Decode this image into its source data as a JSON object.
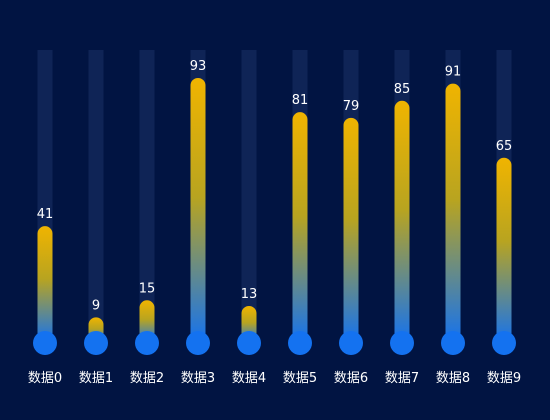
{
  "chart_data": {
    "type": "bar",
    "title": "",
    "xlabel": "",
    "ylabel": "",
    "categories": [
      "数据0",
      "数据1",
      "数据2",
      "数据3",
      "数据4",
      "数据5",
      "数据6",
      "数据7",
      "数据8",
      "数据9"
    ],
    "series": [
      {
        "values": [
          41,
          9,
          15,
          93,
          13,
          81,
          79,
          85,
          91,
          65
        ]
      }
    ],
    "ylim": [
      0,
      100
    ],
    "grid": false,
    "legend": "none",
    "style": "thermometer bars with round base bulbs"
  },
  "colors": {
    "background": "#011442",
    "track": "#0f2456",
    "bar_top": "#f0b400",
    "bar_bottom": "#1472f0",
    "bulb": "#1472f0",
    "label_text": "#ffffff"
  }
}
